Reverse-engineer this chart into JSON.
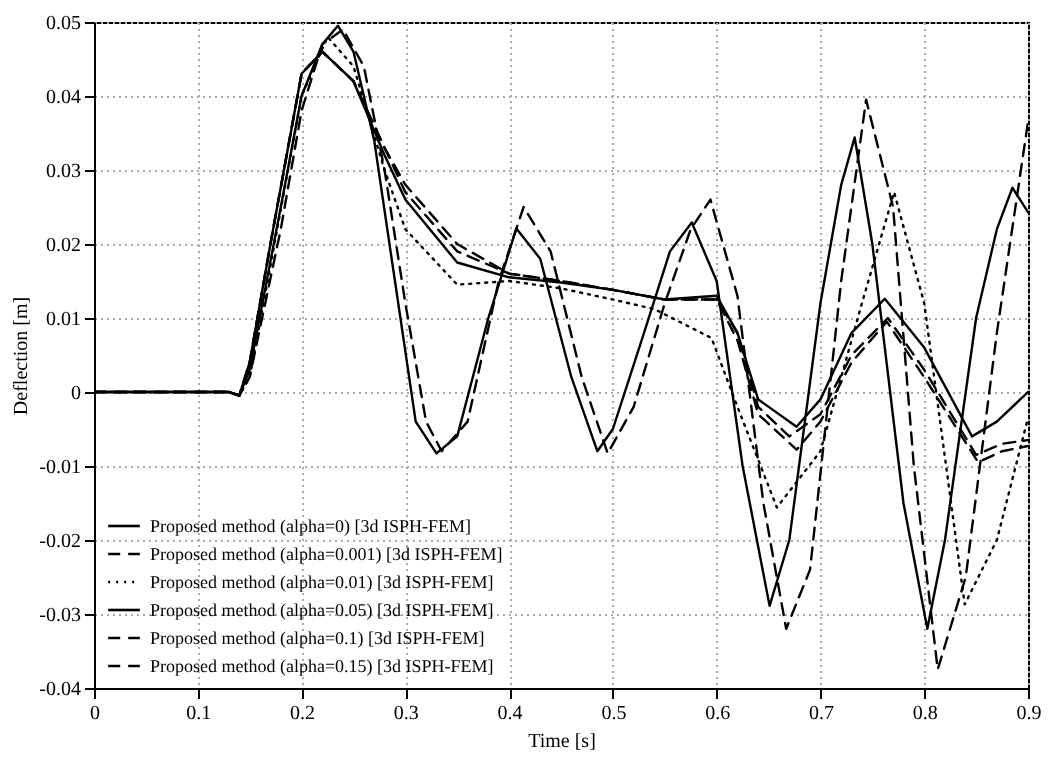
{
  "chart_data": {
    "type": "line",
    "xlabel": "Time [s]",
    "ylabel": "Deflection [m]",
    "xlim": [
      0,
      0.9
    ],
    "xticks": [
      0,
      0.1,
      0.2,
      0.3,
      0.4,
      0.5,
      0.6,
      0.7,
      0.8,
      0.9
    ],
    "ylim": [
      -0.04,
      0.05
    ],
    "yticks": [
      -0.04,
      -0.03,
      -0.02,
      -0.01,
      0,
      0.01,
      0.02,
      0.03,
      0.04,
      0.05
    ],
    "grid": true,
    "legend": "bottom left",
    "series": [
      {
        "name": "Proposed method (alpha=0) [3d ISPH-FEM]",
        "color": "#000000",
        "line_style": "solid",
        "x": [
          0,
          0.13,
          0.14,
          0.15,
          0.18,
          0.2,
          0.22,
          0.235,
          0.25,
          0.27,
          0.29,
          0.31,
          0.33,
          0.35,
          0.38,
          0.407,
          0.43,
          0.46,
          0.485,
          0.5,
          0.53,
          0.555,
          0.576,
          0.6,
          0.625,
          0.651,
          0.67,
          0.7,
          0.72,
          0.733,
          0.75,
          0.78,
          0.803,
          0.82,
          0.85,
          0.87,
          0.885,
          0.9
        ],
        "values": [
          0,
          0,
          -0.0005,
          0.003,
          0.025,
          0.04,
          0.047,
          0.0495,
          0.046,
          0.034,
          0.015,
          -0.004,
          -0.0083,
          -0.006,
          0.01,
          0.0221,
          0.018,
          0.002,
          -0.008,
          -0.005,
          0.008,
          0.019,
          0.0229,
          0.015,
          -0.01,
          -0.0289,
          -0.02,
          0.012,
          0.028,
          0.0344,
          0.02,
          -0.015,
          -0.032,
          -0.02,
          0.01,
          0.022,
          0.0276,
          0.0243
        ]
      },
      {
        "name": "Proposed method (alpha=0.001) [3d ISPH-FEM]",
        "color": "#000000",
        "line_style": "dashed",
        "x": [
          0,
          0.13,
          0.14,
          0.15,
          0.18,
          0.2,
          0.22,
          0.24,
          0.26,
          0.28,
          0.3,
          0.32,
          0.335,
          0.36,
          0.39,
          0.414,
          0.44,
          0.47,
          0.495,
          0.52,
          0.55,
          0.575,
          0.594,
          0.62,
          0.645,
          0.667,
          0.69,
          0.72,
          0.744,
          0.77,
          0.79,
          0.813,
          0.84,
          0.87,
          0.9
        ],
        "values": [
          0,
          0,
          -0.0005,
          0.002,
          0.022,
          0.038,
          0.047,
          0.049,
          0.044,
          0.03,
          0.012,
          -0.004,
          -0.008,
          -0.004,
          0.015,
          0.025,
          0.019,
          0.002,
          -0.0083,
          -0.002,
          0.012,
          0.022,
          0.026,
          0.013,
          -0.015,
          -0.032,
          -0.024,
          0.015,
          0.0395,
          0.025,
          -0.01,
          -0.0375,
          -0.025,
          0.008,
          0.0365
        ]
      },
      {
        "name": "Proposed method (alpha=0.01) [3d ISPH-FEM]",
        "color": "#000000",
        "line_style": "dotted",
        "x": [
          0,
          0.13,
          0.14,
          0.15,
          0.17,
          0.2,
          0.225,
          0.25,
          0.28,
          0.3,
          0.35,
          0.4,
          0.45,
          0.5,
          0.54,
          0.595,
          0.62,
          0.658,
          0.7,
          0.74,
          0.771,
          0.8,
          0.839,
          0.87,
          0.9
        ],
        "values": [
          0,
          0,
          -0.0005,
          0.002,
          0.017,
          0.04,
          0.048,
          0.044,
          0.03,
          0.022,
          0.0145,
          0.015,
          0.014,
          0.0125,
          0.0112,
          0.0073,
          -0.002,
          -0.0156,
          -0.008,
          0.012,
          0.027,
          0.012,
          -0.0287,
          -0.02,
          -0.0035
        ]
      },
      {
        "name": "Proposed method (alpha=0.05) [3d ISPH-FEM]",
        "color": "#000000",
        "line_style": "solid",
        "x": [
          0,
          0.13,
          0.14,
          0.15,
          0.17,
          0.2,
          0.22,
          0.25,
          0.28,
          0.3,
          0.35,
          0.4,
          0.45,
          0.5,
          0.55,
          0.6,
          0.62,
          0.64,
          0.677,
          0.7,
          0.73,
          0.762,
          0.8,
          0.846,
          0.87,
          0.9
        ],
        "values": [
          0,
          0,
          -0.0005,
          0.004,
          0.02,
          0.043,
          0.046,
          0.042,
          0.032,
          0.026,
          0.0175,
          0.0155,
          0.0148,
          0.0138,
          0.0125,
          0.013,
          0.008,
          -0.001,
          -0.0047,
          -0.001,
          0.008,
          0.0126,
          0.006,
          -0.006,
          -0.004,
          0
        ]
      },
      {
        "name": "Proposed method (alpha=0.1) [3d ISPH-FEM]",
        "color": "#000000",
        "line_style": "dashed",
        "x": [
          0,
          0.13,
          0.14,
          0.15,
          0.17,
          0.2,
          0.22,
          0.25,
          0.28,
          0.3,
          0.35,
          0.4,
          0.45,
          0.5,
          0.55,
          0.6,
          0.62,
          0.64,
          0.677,
          0.7,
          0.73,
          0.764,
          0.8,
          0.852,
          0.875,
          0.9
        ],
        "values": [
          0,
          0,
          -0.0005,
          0.004,
          0.02,
          0.043,
          0.046,
          0.042,
          0.033,
          0.027,
          0.019,
          0.016,
          0.015,
          0.0138,
          0.0125,
          0.0125,
          0.007,
          -0.003,
          -0.0078,
          -0.004,
          0.004,
          0.0095,
          0.002,
          -0.0095,
          -0.008,
          -0.0073
        ]
      },
      {
        "name": "Proposed method (alpha=0.15) [3d ISPH-FEM]",
        "color": "#000000",
        "line_style": "dashed",
        "x": [
          0,
          0.13,
          0.14,
          0.15,
          0.17,
          0.2,
          0.22,
          0.25,
          0.28,
          0.3,
          0.35,
          0.4,
          0.45,
          0.5,
          0.55,
          0.6,
          0.62,
          0.64,
          0.67,
          0.7,
          0.73,
          0.765,
          0.8,
          0.85,
          0.875,
          0.9
        ],
        "values": [
          0,
          0,
          -0.0005,
          0.004,
          0.02,
          0.043,
          0.046,
          0.042,
          0.033,
          0.028,
          0.02,
          0.016,
          0.015,
          0.0138,
          0.0125,
          0.0125,
          0.008,
          -0.002,
          -0.006,
          -0.003,
          0.005,
          0.01,
          0.003,
          -0.0085,
          -0.007,
          -0.0065
        ]
      }
    ]
  }
}
